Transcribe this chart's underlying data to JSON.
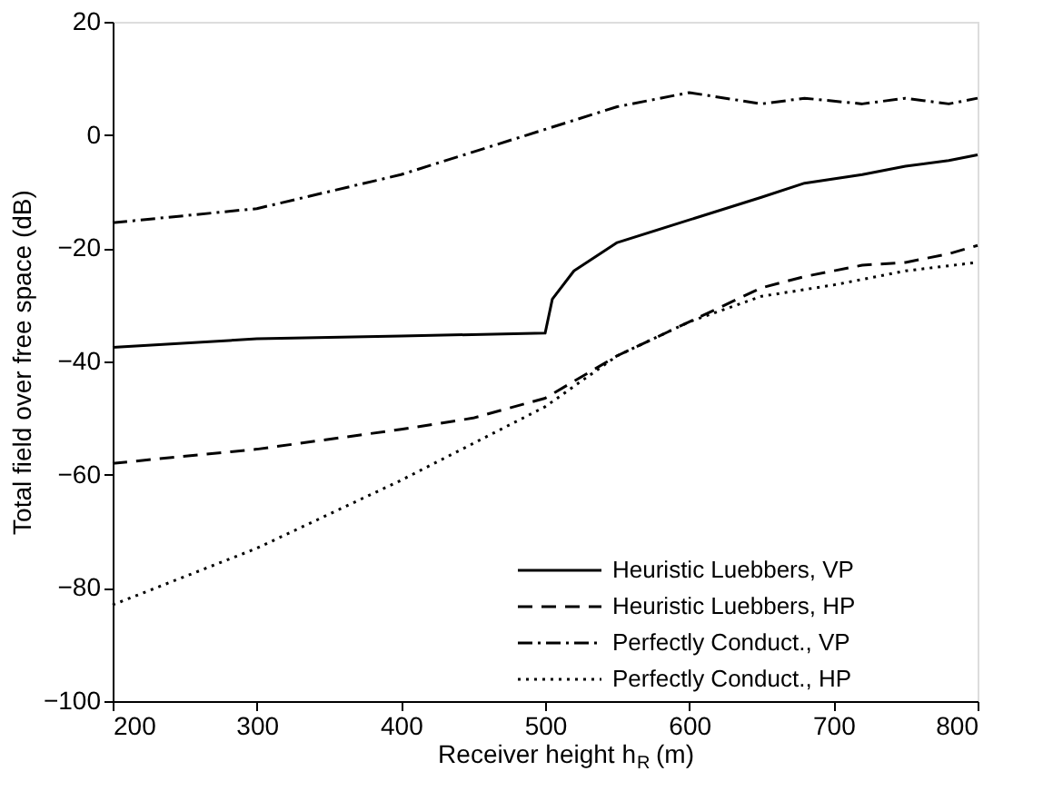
{
  "chart_data": {
    "type": "line",
    "xlabel": "Receiver height h$_{R}$ (m)",
    "ylabel": "Total field over free space (dB)",
    "xlim": [
      200,
      800
    ],
    "xticks": [
      200,
      300,
      400,
      500,
      600,
      700,
      800
    ],
    "ylim": [
      -100,
      20
    ],
    "yticks": [
      -100,
      -80,
      -60,
      -40,
      -20,
      0,
      20
    ],
    "grid": false,
    "legend": "bottom right",
    "marker": "none",
    "series": [
      {
        "name": "Heuristic Luebbers, VP",
        "color": "#000000",
        "line_style": "solid",
        "x": [
          200,
          300,
          400,
          500,
          505,
          520,
          550,
          600,
          650,
          680,
          720,
          750,
          780,
          800
        ],
        "values": [
          -37.5,
          -36,
          -35.5,
          -35,
          -29,
          -24,
          -19,
          -15,
          -11,
          -8.5,
          -7,
          -5.5,
          -4.5,
          -3.5
        ]
      },
      {
        "name": "Heuristic Luebbers, HP",
        "color": "#000000",
        "line_style": "dashed",
        "x": [
          200,
          300,
          400,
          450,
          500,
          550,
          600,
          650,
          680,
          720,
          750,
          780,
          800
        ],
        "values": [
          -58,
          -55.5,
          -52,
          -50,
          -46.5,
          -39,
          -33,
          -27,
          -25,
          -23,
          -22.5,
          -21,
          -19.5
        ]
      },
      {
        "name": "Perfectly Conduct., VP",
        "color": "#000000",
        "line_style": "dashdot",
        "x": [
          200,
          300,
          400,
          450,
          500,
          550,
          600,
          650,
          680,
          700,
          720,
          750,
          780,
          800
        ],
        "values": [
          -15.5,
          -13,
          -7,
          -3,
          1,
          5,
          7.5,
          5.5,
          6.5,
          6,
          5.5,
          6.5,
          5.5,
          6.5
        ]
      },
      {
        "name": "Perfectly Conduct., HP",
        "color": "#000000",
        "line_style": "dotted",
        "x": [
          200,
          250,
          300,
          350,
          400,
          450,
          500,
          550,
          600,
          650,
          700,
          750,
          800
        ],
        "values": [
          -83,
          -78,
          -73,
          -67,
          -61,
          -54.5,
          -48,
          -39,
          -33,
          -28.5,
          -26.5,
          -24,
          -22.5
        ]
      }
    ]
  }
}
